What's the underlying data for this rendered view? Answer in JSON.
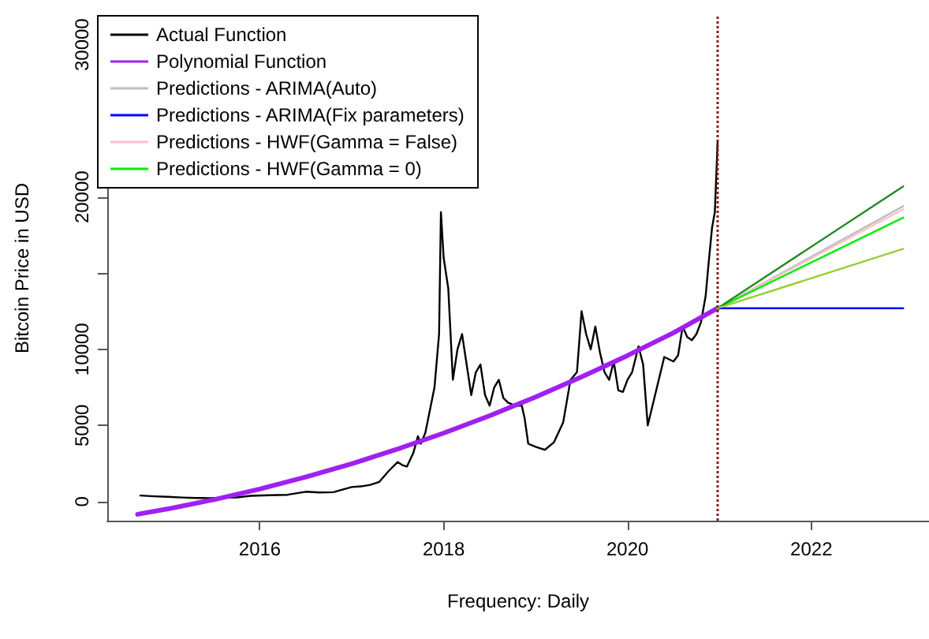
{
  "chart_data": {
    "type": "line",
    "xlabel": "Frequency: Daily",
    "ylabel": "Bitcoin Price in USD",
    "xlim": [
      2014.34,
      2023.28
    ],
    "xticks": [
      2016,
      2018,
      2020,
      2022
    ],
    "ylim": [
      -1250,
      31900
    ],
    "yticks": [
      0,
      5000,
      10000,
      {
        "value": 15000,
        "label": null
      },
      20000,
      {
        "value": 25000,
        "label": null
      },
      30000
    ],
    "grid": false,
    "legend": "top left",
    "marker": "none",
    "line_style": "solid",
    "series": [
      {
        "name": "Actual Function",
        "color": "#000000",
        "x": [
          2014.7,
          2014.85,
          2015.0,
          2015.15,
          2015.3,
          2015.45,
          2015.6,
          2015.75,
          2015.9,
          2016.1,
          2016.3,
          2016.5,
          2016.65,
          2016.8,
          2017.0,
          2017.1,
          2017.2,
          2017.3,
          2017.4,
          2017.5,
          2017.55,
          2017.6,
          2017.67,
          2017.72,
          2017.75,
          2017.8,
          2017.85,
          2017.9,
          2017.95,
          2017.97,
          2018.0,
          2018.05,
          2018.1,
          2018.15,
          2018.2,
          2018.25,
          2018.3,
          2018.35,
          2018.4,
          2018.45,
          2018.5,
          2018.55,
          2018.6,
          2018.65,
          2018.7,
          2018.78,
          2018.85,
          2018.88,
          2018.92,
          2019.0,
          2019.1,
          2019.2,
          2019.3,
          2019.38,
          2019.45,
          2019.5,
          2019.55,
          2019.6,
          2019.65,
          2019.7,
          2019.75,
          2019.8,
          2019.85,
          2019.9,
          2019.95,
          2020.0,
          2020.05,
          2020.12,
          2020.17,
          2020.22,
          2020.3,
          2020.4,
          2020.5,
          2020.55,
          2020.6,
          2020.65,
          2020.7,
          2020.75,
          2020.8,
          2020.85,
          2020.88,
          2020.92,
          2020.95,
          2020.98
        ],
        "values": [
          400,
          350,
          320,
          270,
          240,
          230,
          250,
          280,
          380,
          420,
          450,
          650,
          600,
          620,
          960,
          1000,
          1100,
          1300,
          2000,
          2600,
          2400,
          2300,
          3200,
          4300,
          3800,
          4500,
          6000,
          7500,
          11000,
          19000,
          16000,
          14000,
          8000,
          10000,
          11000,
          9000,
          7000,
          8500,
          9000,
          7000,
          6300,
          7500,
          8000,
          6800,
          6500,
          6300,
          6300,
          5500,
          3800,
          3600,
          3400,
          3900,
          5200,
          8000,
          8500,
          12500,
          11000,
          10000,
          11500,
          9800,
          8500,
          8000,
          9200,
          7300,
          7200,
          8000,
          8500,
          10200,
          9000,
          5000,
          7000,
          9500,
          9200,
          9600,
          11500,
          10800,
          10600,
          11000,
          11800,
          13500,
          15500,
          18000,
          19000,
          23600
        ]
      },
      {
        "name": "Polynomial Function",
        "color": "#a020f0",
        "x": [
          2014.67,
          2015.0,
          2015.5,
          2016.0,
          2016.5,
          2017.0,
          2017.5,
          2018.0,
          2018.5,
          2019.0,
          2019.5,
          2020.0,
          2020.5,
          2020.98
        ],
        "values": [
          -830,
          -477,
          132,
          830,
          1615,
          2489,
          3452,
          4500,
          5642,
          6871,
          8187,
          9592,
          11086,
          12700
        ]
      },
      {
        "name": "Predictions - ARIMA(Auto)",
        "color": "#bebebe",
        "x": [
          2020.98,
          2023.0
        ],
        "values": [
          12700,
          19400
        ]
      },
      {
        "name": "Predictions - ARIMA(Fix parameters)",
        "color": "#0000ff",
        "x": [
          2020.98,
          2023.0
        ],
        "values": [
          12700,
          12700
        ]
      },
      {
        "name": "Predictions - HWF(Gamma = False)",
        "color": "#ffc0cb",
        "x": [
          2020.98,
          2023.0
        ],
        "values": [
          12700,
          19200
        ]
      },
      {
        "name": "Predictions - HWF(Gamma = 0)",
        "color": "#00ee00",
        "x": [
          2020.98,
          2023.0
        ],
        "values": [
          12700,
          18650
        ]
      },
      {
        "color": "#228b22",
        "x": [
          2020.98,
          2023.0
        ],
        "values": [
          12700,
          20700
        ]
      },
      {
        "color": "#9acd32",
        "x": [
          2020.98,
          2023.0
        ],
        "values": [
          12700,
          16600
        ]
      }
    ],
    "ref_lines": [
      {
        "axis": "x",
        "value": 2020.98,
        "color": "#8b1a1a",
        "line_style": "dotted"
      }
    ]
  }
}
